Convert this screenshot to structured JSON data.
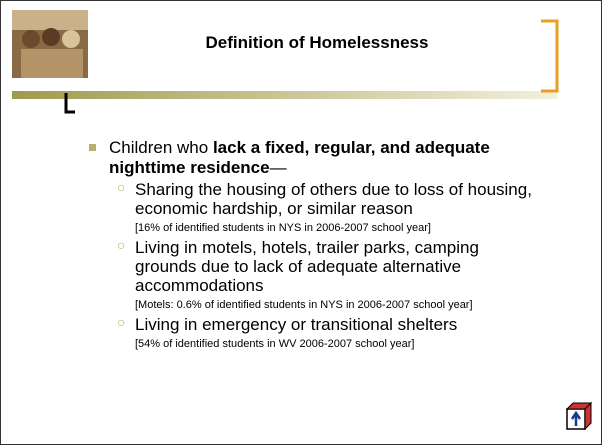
{
  "header": {
    "title": "Definition of Homelessness"
  },
  "bullet": {
    "lead": "Children who ",
    "bold": "lack a fixed, regular, and adequate nighttime residence",
    "tail": "—"
  },
  "items": [
    {
      "text": "Sharing the housing of others due to loss of housing, economic hardship, or similar reason",
      "note": "[16% of identified students in NYS in 2006-2007 school year]"
    },
    {
      "text": "Living in motels, hotels, trailer parks, camping grounds due to lack of adequate alternative accommodations",
      "note": "[Motels: 0.6% of identified students in NYS in 2006-2007 school year]"
    },
    {
      "text": "Living in emergency or transitional shelters",
      "note": "[54% of identified students in WV 2006-2007 school year]"
    }
  ]
}
